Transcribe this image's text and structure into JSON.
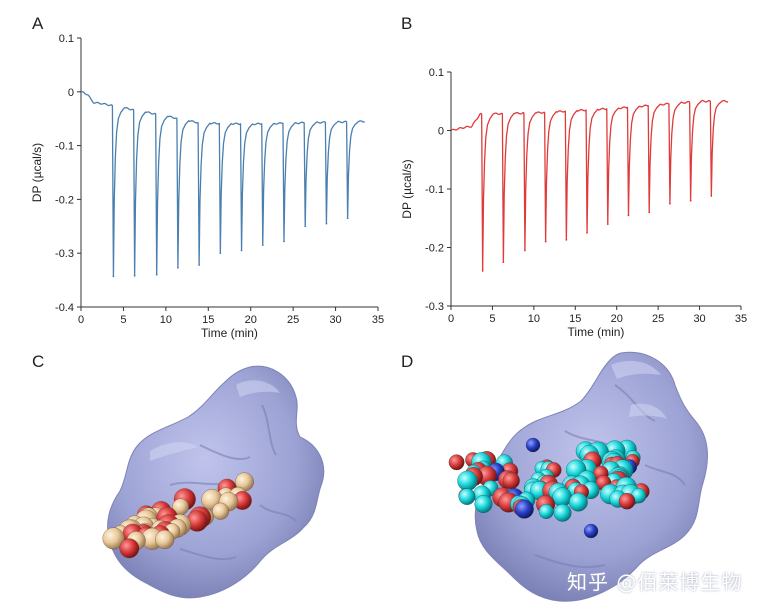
{
  "panels": {
    "a": "A",
    "b": "B",
    "c": "C",
    "d": "D"
  },
  "watermark": "知乎 @佰莱博生物",
  "colors": {
    "series_a": "#4a7fb0",
    "series_b": "#e03a3a",
    "protein_surface": "#9aa0d2",
    "ligand_c_carbon": "#e8c89a",
    "ligand_d_carbon": "#19d6da",
    "oxygen": "#d83a3a",
    "nitrogen": "#2a40c8"
  },
  "chart_data": [
    {
      "panel": "A",
      "type": "line",
      "title": "",
      "xlabel": "Time (min)",
      "ylabel": "DP (µcal/s)",
      "xlim": [
        0,
        35
      ],
      "ylim": [
        -0.4,
        0.1
      ],
      "xticks": [
        "0",
        "5",
        "10",
        "15",
        "20",
        "25",
        "30",
        "35"
      ],
      "yticks": [
        "0.1",
        "0",
        "-0.1",
        "-0.2",
        "-0.3",
        "-0.4"
      ],
      "baseline": [
        {
          "x": 0.0,
          "y": 0.0
        },
        {
          "x": 0.8,
          "y": -0.005
        },
        {
          "x": 1.2,
          "y": -0.015
        },
        {
          "x": 1.5,
          "y": -0.02
        },
        {
          "x": 2.5,
          "y": -0.022
        },
        {
          "x": 3.5,
          "y": -0.025
        },
        {
          "x": 10.0,
          "y": -0.045
        },
        {
          "x": 14.0,
          "y": -0.058
        },
        {
          "x": 20.0,
          "y": -0.06
        },
        {
          "x": 33.5,
          "y": -0.055
        }
      ],
      "injections": [
        {
          "time": 3.7,
          "peak": -0.343
        },
        {
          "time": 6.2,
          "peak": -0.342
        },
        {
          "time": 8.8,
          "peak": -0.34
        },
        {
          "time": 11.3,
          "peak": -0.327
        },
        {
          "time": 13.8,
          "peak": -0.322
        },
        {
          "time": 16.3,
          "peak": -0.3
        },
        {
          "time": 18.8,
          "peak": -0.295
        },
        {
          "time": 21.3,
          "peak": -0.285
        },
        {
          "time": 23.8,
          "peak": -0.278
        },
        {
          "time": 26.3,
          "peak": -0.25
        },
        {
          "time": 28.8,
          "peak": -0.245
        },
        {
          "time": 31.3,
          "peak": -0.235
        }
      ]
    },
    {
      "panel": "B",
      "type": "line",
      "title": "",
      "xlabel": "Time (min)",
      "ylabel": "DP (µcal/s)",
      "xlim": [
        0,
        35
      ],
      "ylim": [
        -0.3,
        0.1
      ],
      "xticks": [
        "0",
        "5",
        "10",
        "15",
        "20",
        "25",
        "30",
        "35"
      ],
      "yticks": [
        "0.1",
        "0",
        "-0.1",
        "-0.2",
        "-0.3"
      ],
      "baseline": [
        {
          "x": 0.0,
          "y": 0.0
        },
        {
          "x": 1.5,
          "y": 0.005
        },
        {
          "x": 2.5,
          "y": 0.007
        },
        {
          "x": 3.5,
          "y": 0.028
        },
        {
          "x": 10.0,
          "y": 0.03
        },
        {
          "x": 20.0,
          "y": 0.038
        },
        {
          "x": 30.0,
          "y": 0.05
        },
        {
          "x": 33.5,
          "y": 0.05
        }
      ],
      "injections": [
        {
          "time": 3.7,
          "peak": -0.24
        },
        {
          "time": 6.2,
          "peak": -0.225
        },
        {
          "time": 8.8,
          "peak": -0.205
        },
        {
          "time": 11.3,
          "peak": -0.19
        },
        {
          "time": 13.8,
          "peak": -0.187
        },
        {
          "time": 16.3,
          "peak": -0.175
        },
        {
          "time": 18.8,
          "peak": -0.16
        },
        {
          "time": 21.3,
          "peak": -0.145
        },
        {
          "time": 23.8,
          "peak": -0.14
        },
        {
          "time": 26.3,
          "peak": -0.125
        },
        {
          "time": 28.8,
          "peak": -0.12
        },
        {
          "time": 31.3,
          "peak": -0.112
        }
      ]
    }
  ]
}
